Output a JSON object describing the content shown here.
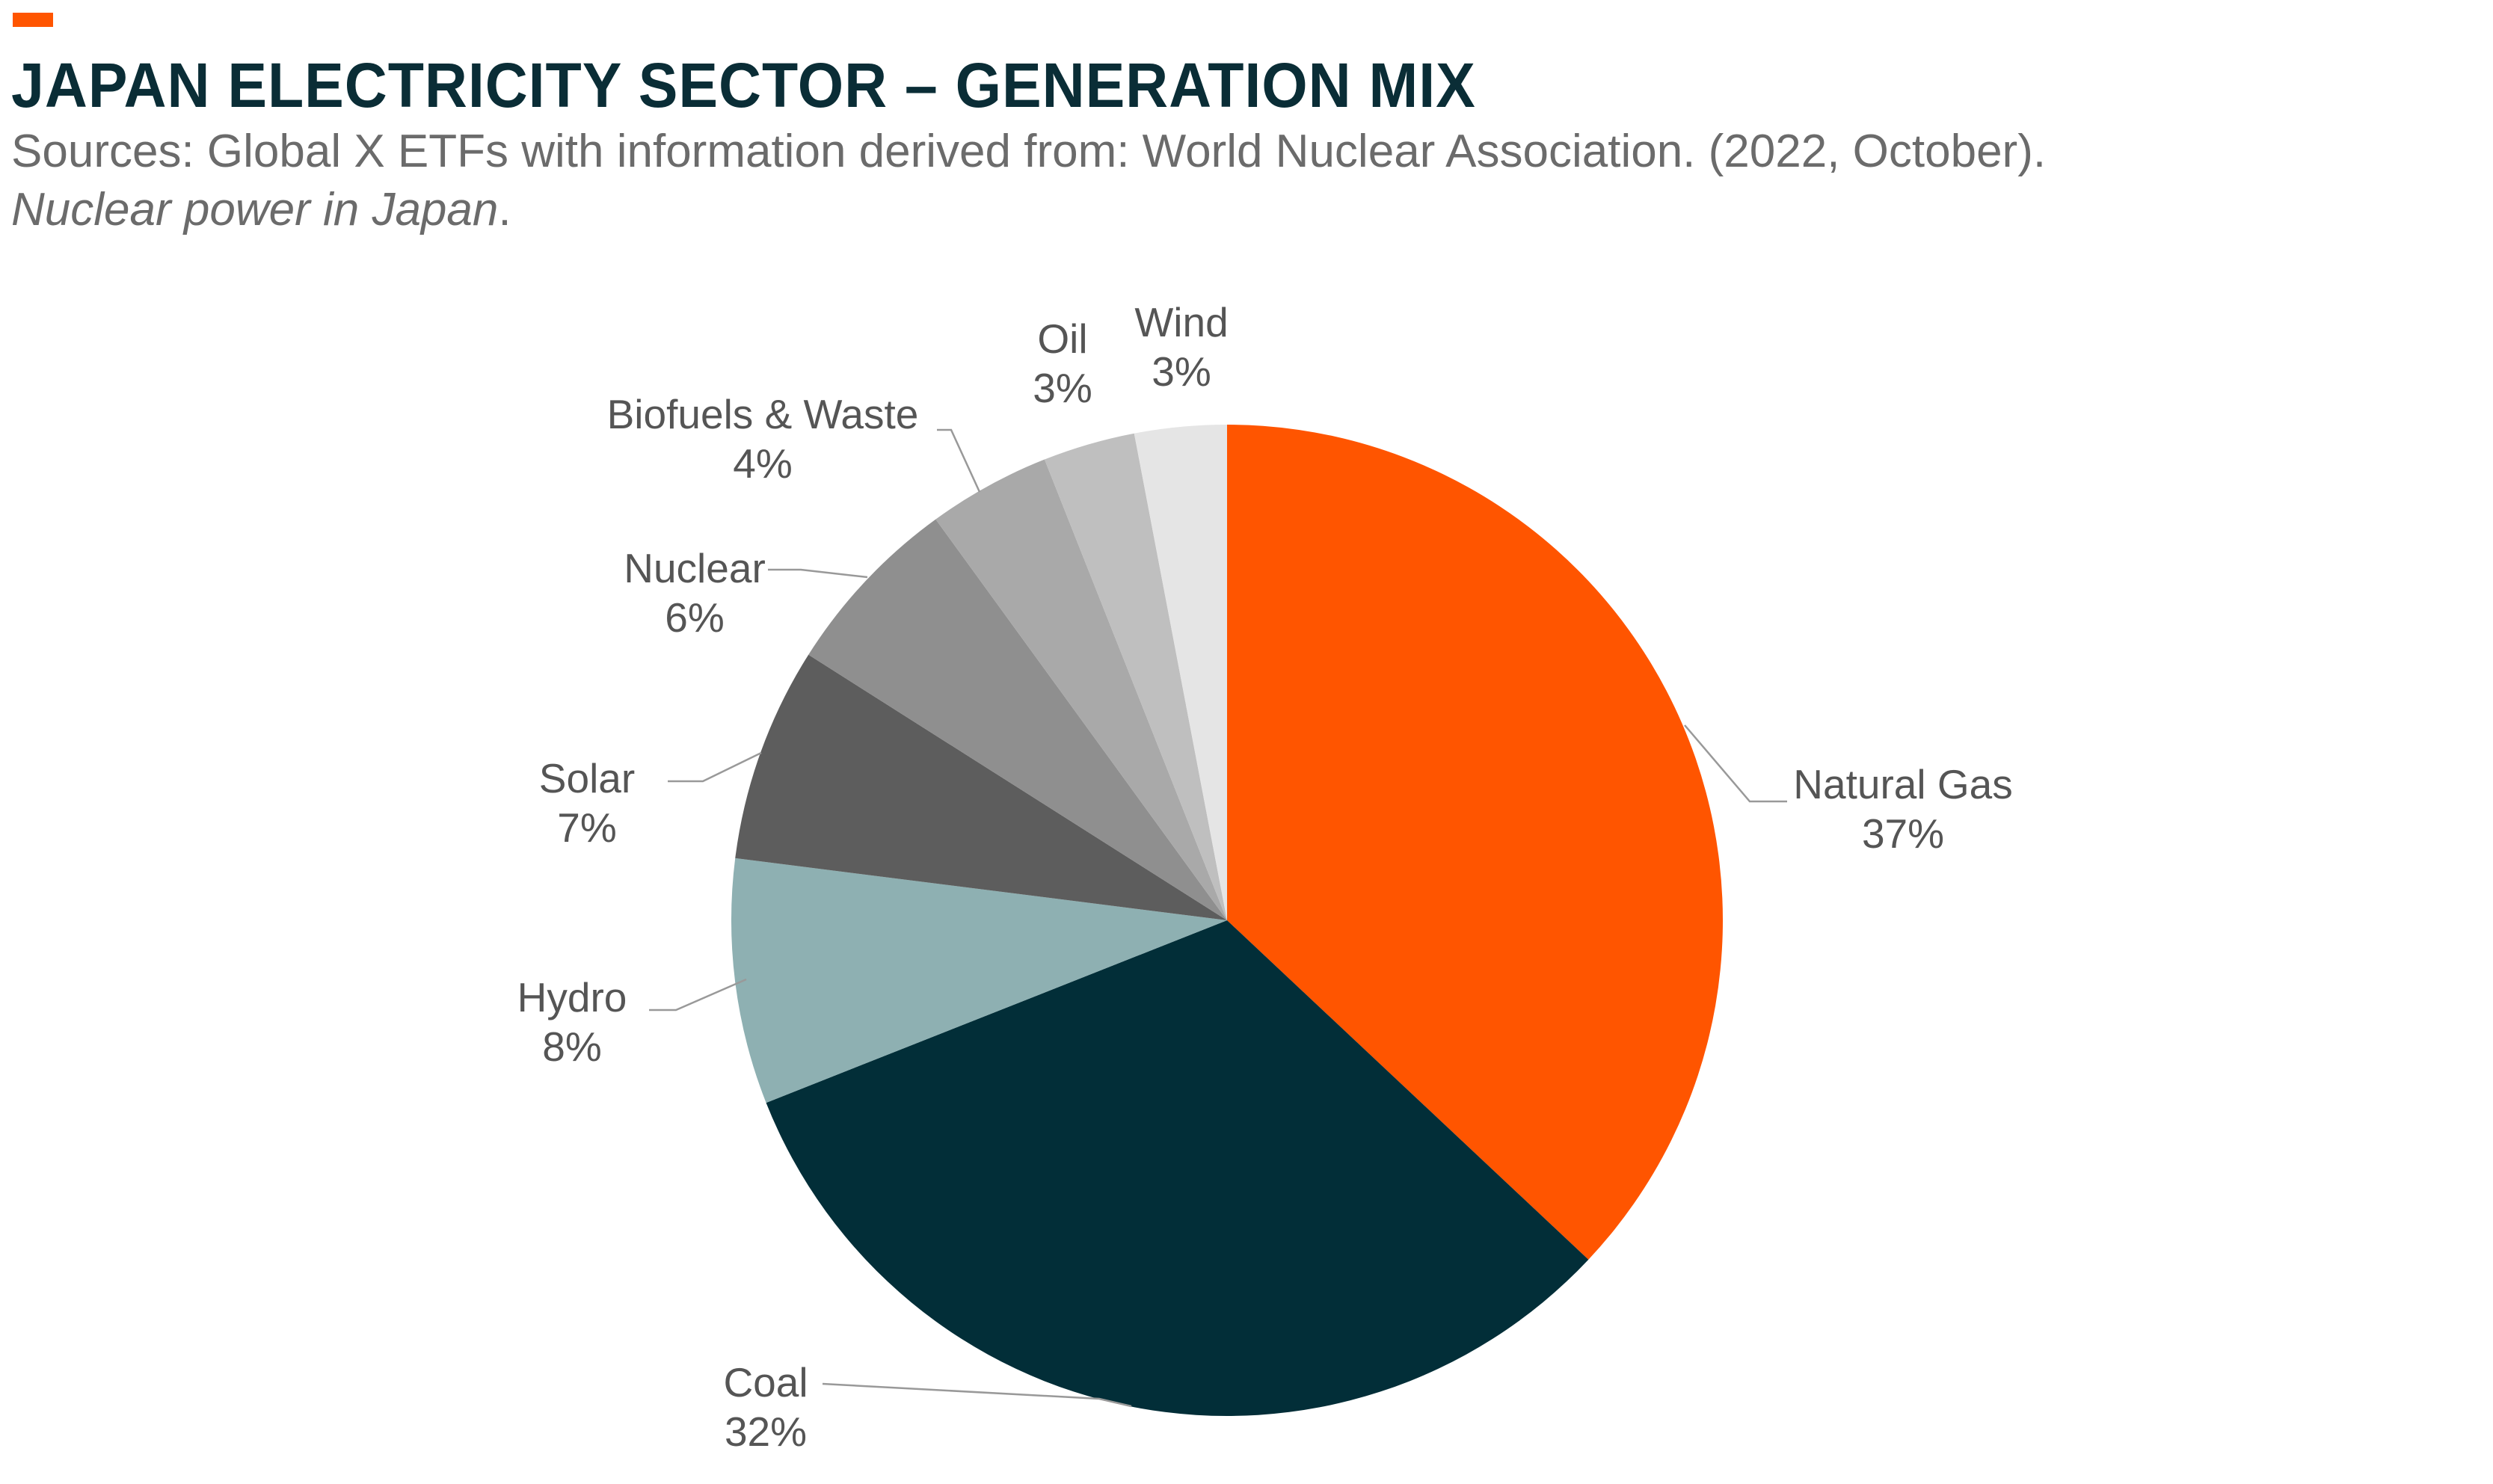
{
  "header": {
    "title": "JAPAN ELECTRICITY SECTOR – GENERATION MIX",
    "source_line": "Sources: Global X ETFs with information derived from: World Nuclear Association. (2022, October).",
    "source_italic": "Nuclear power in Japan",
    "source_italic_suffix": "."
  },
  "colors": {
    "accent": "#ff5500",
    "title": "#0a2d36",
    "label_text": "#555555",
    "leader_line": "#999999"
  },
  "chart_data": {
    "type": "pie",
    "start_angle_deg": 0,
    "direction": "clockwise",
    "slices": [
      {
        "name": "Natural Gas",
        "value": 37,
        "label": "37%",
        "color": "#ff5500"
      },
      {
        "name": "Coal",
        "value": 32,
        "label": "32%",
        "color": "#022e38"
      },
      {
        "name": "Hydro",
        "value": 8,
        "label": "8%",
        "color": "#8eb0b2"
      },
      {
        "name": "Solar",
        "value": 7,
        "label": "7%",
        "color": "#5d5d5d"
      },
      {
        "name": "Nuclear",
        "value": 6,
        "label": "6%",
        "color": "#8f8f8f"
      },
      {
        "name": "Biofuels & Waste",
        "value": 4,
        "label": "4%",
        "color": "#a9a9a9"
      },
      {
        "name": "Oil",
        "value": 3,
        "label": "3%",
        "color": "#bfbfbf"
      },
      {
        "name": "Wind",
        "value": 3,
        "label": "3%",
        "color": "#e5e5e5"
      }
    ]
  }
}
